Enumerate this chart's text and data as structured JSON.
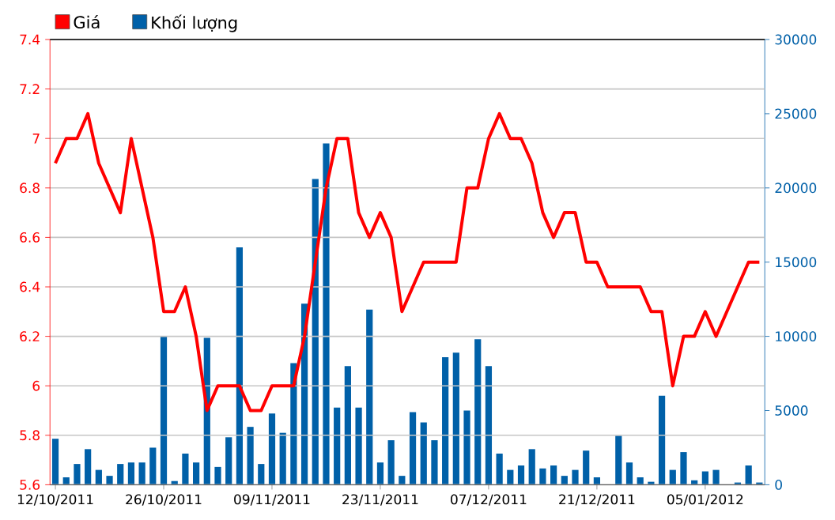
{
  "chart_data": {
    "type": "line",
    "categories": [
      "12/10/2011",
      null,
      null,
      null,
      null,
      null,
      null,
      null,
      null,
      null,
      "26/10/2011",
      null,
      null,
      null,
      null,
      null,
      null,
      null,
      null,
      null,
      "09/11/2011",
      null,
      null,
      null,
      null,
      null,
      null,
      null,
      null,
      null,
      "23/11/2011",
      null,
      null,
      null,
      null,
      null,
      null,
      null,
      null,
      null,
      "07/12/2011",
      null,
      null,
      null,
      null,
      null,
      null,
      null,
      null,
      null,
      "21/12/2011",
      null,
      null,
      null,
      null,
      null,
      null,
      null,
      null,
      null,
      "05/01/2012",
      null,
      null,
      null,
      null,
      null
    ],
    "series": [
      {
        "name": "Giá",
        "color": "#ff0000",
        "axis": "y",
        "values": [
          6.9,
          7.0,
          7.0,
          7.1,
          6.9,
          6.8,
          6.7,
          7.0,
          6.8,
          6.6,
          6.3,
          6.3,
          6.4,
          6.2,
          5.9,
          6.0,
          6.0,
          6.0,
          5.9,
          5.9,
          6.0,
          6.0,
          6.0,
          6.2,
          6.5,
          6.8,
          7.0,
          7.0,
          6.7,
          6.6,
          6.7,
          6.6,
          6.3,
          6.4,
          6.5,
          6.5,
          6.5,
          6.5,
          6.8,
          6.8,
          7.0,
          7.1,
          7.0,
          7.0,
          6.9,
          6.7,
          6.6,
          6.7,
          6.7,
          6.5,
          6.5,
          6.4,
          6.4,
          6.4,
          6.4,
          6.3,
          6.3,
          6.0,
          6.2,
          6.2,
          6.3,
          6.2,
          6.3,
          6.4,
          6.5,
          6.5
        ]
      },
      {
        "name": "Khối lượng",
        "color": "#0060a8",
        "type": "bar",
        "axis": "y2",
        "values": [
          3100,
          500,
          1400,
          2400,
          1000,
          600,
          1400,
          1500,
          1500,
          2500,
          10000,
          250,
          2100,
          1500,
          9900,
          1200,
          3200,
          16000,
          3900,
          1400,
          4800,
          3500,
          8200,
          12200,
          20600,
          23000,
          5200,
          8000,
          5200,
          11800,
          1500,
          3000,
          600,
          4900,
          4200,
          3000,
          8600,
          8900,
          5000,
          9800,
          8000,
          2100,
          1000,
          1300,
          2400,
          1100,
          1300,
          600,
          1000,
          2300,
          500,
          0,
          3300,
          1500,
          500,
          200,
          6000,
          1000,
          2200,
          300,
          900,
          1000,
          0,
          150,
          1300,
          150
        ]
      }
    ],
    "ylim": [
      5.6,
      7.4
    ],
    "yticks": [
      5.6,
      5.8,
      6,
      6.2,
      6.4,
      6.6,
      6.8,
      7,
      7.2,
      7.4
    ],
    "y2lim": [
      0,
      30000
    ],
    "y2ticks": [
      0,
      5000,
      10000,
      15000,
      20000,
      25000,
      30000
    ],
    "grid": "y",
    "legend": "top left"
  }
}
